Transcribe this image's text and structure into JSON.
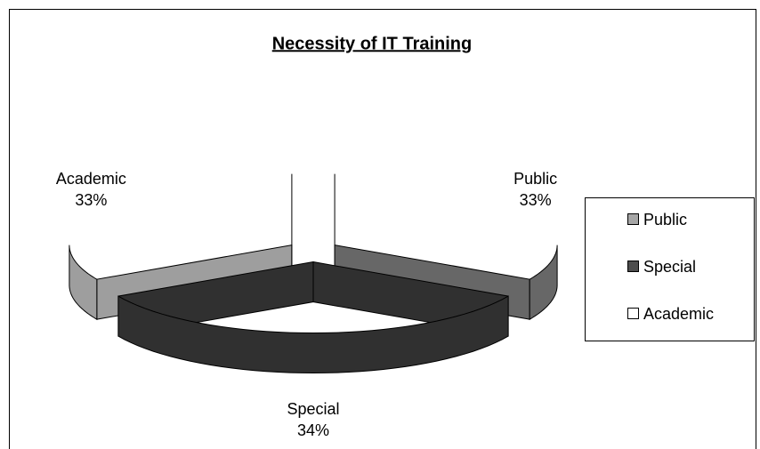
{
  "chart_data": {
    "type": "pie",
    "title": "Necessity of IT Training",
    "categories": [
      "Public",
      "Special",
      "Academic"
    ],
    "values": [
      33,
      34,
      33
    ],
    "value_labels": [
      "33%",
      "34%",
      "33%"
    ],
    "colors": [
      "#a6a6a6",
      "#4d4d4d",
      "#ffffff"
    ],
    "legend": "right"
  }
}
